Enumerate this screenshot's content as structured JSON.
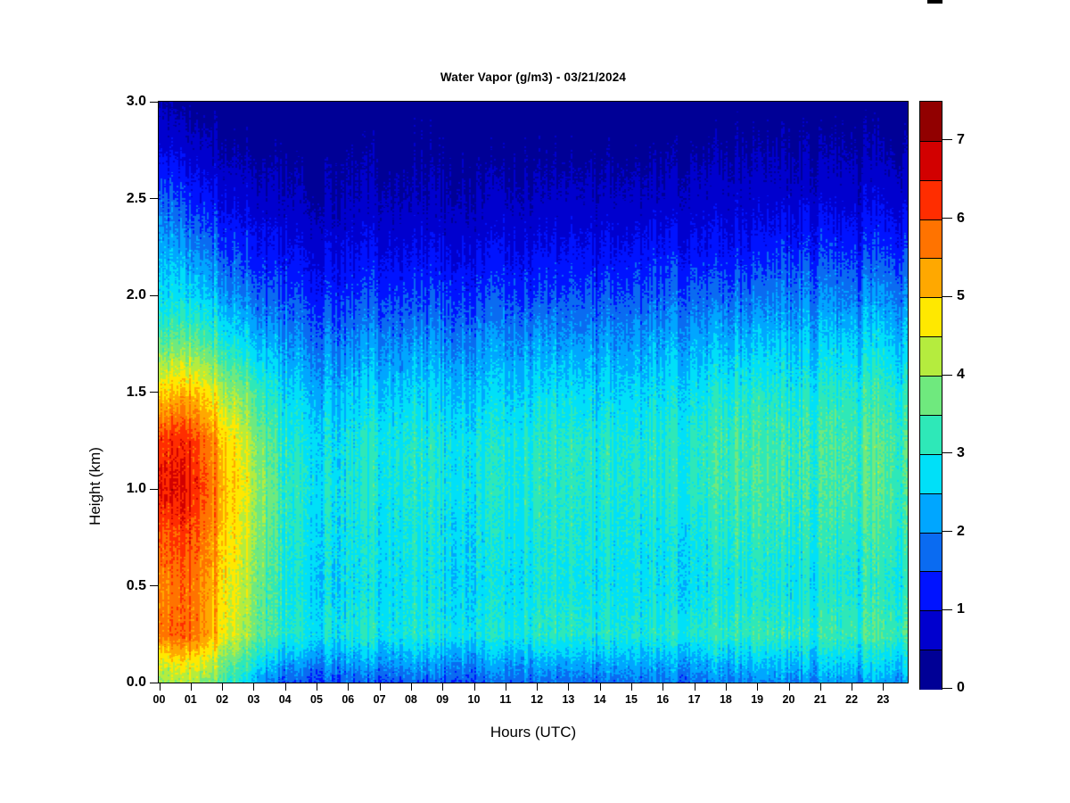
{
  "chart_data": {
    "type": "heatmap",
    "title": "Water Vapor (g/m3) - 03/21/2024",
    "xlabel": "Hours (UTC)",
    "ylabel": "Height (km)",
    "x_ticks": [
      "00",
      "01",
      "02",
      "03",
      "04",
      "05",
      "06",
      "07",
      "08",
      "09",
      "10",
      "11",
      "12",
      "13",
      "14",
      "15",
      "16",
      "17",
      "18",
      "19",
      "20",
      "21",
      "22",
      "23"
    ],
    "y_ticks": [
      "0.0",
      "0.5",
      "1.0",
      "1.5",
      "2.0",
      "2.5",
      "3.0"
    ],
    "x_range_hours": [
      0,
      24
    ],
    "y_range_km": [
      0.0,
      3.0
    ],
    "grid_lines": false,
    "colorbar": {
      "min": 0,
      "max": 7.5,
      "bin_size": 0.5,
      "tick_labels": [
        "0",
        "1",
        "2",
        "3",
        "4",
        "5",
        "6",
        "7"
      ],
      "colors": [
        "#000096",
        "#0000CE",
        "#0013FF",
        "#0A6BF1",
        "#00A6FF",
        "#00E0F8",
        "#2EE8B8",
        "#6FE97E",
        "#B5EC3E",
        "#FFE800",
        "#FFA800",
        "#FF7300",
        "#FF2D00",
        "#D20000",
        "#910000"
      ]
    },
    "grid": {
      "hours": [
        0,
        1,
        2,
        3,
        4,
        5,
        6,
        7,
        8,
        9,
        10,
        11,
        12,
        13,
        14,
        15,
        16,
        17,
        18,
        19,
        20,
        21,
        22,
        23,
        24
      ],
      "heights_km": [
        0,
        0.1,
        0.25,
        0.5,
        0.75,
        1,
        1.25,
        1.5,
        1.75,
        2,
        2.25,
        2.5,
        2.75,
        3
      ],
      "values_gm3_by_height_row": [
        [
          4.0,
          4.2,
          3.6,
          2.6,
          1.5,
          1.6,
          1.6,
          1.5,
          1.6,
          1.6,
          1.6,
          1.7,
          1.7,
          1.7,
          1.7,
          1.8,
          1.8,
          1.8,
          1.9,
          1.9,
          1.9,
          2.0,
          2.0,
          2.1,
          2.2
        ],
        [
          4.6,
          4.8,
          4.0,
          3.2,
          2.2,
          2.2,
          2.1,
          2.1,
          2.2,
          2.1,
          2.1,
          2.2,
          2.2,
          2.2,
          2.2,
          2.3,
          2.2,
          2.3,
          2.4,
          2.4,
          2.4,
          2.5,
          2.5,
          2.6,
          2.6
        ],
        [
          5.8,
          6.0,
          4.9,
          4.0,
          3.1,
          3.0,
          2.9,
          2.9,
          3.0,
          2.9,
          2.9,
          3.0,
          3.0,
          3.1,
          3.0,
          3.0,
          3.0,
          3.1,
          3.2,
          3.2,
          3.1,
          3.2,
          3.2,
          3.3,
          3.3
        ],
        [
          5.6,
          5.9,
          5.0,
          4.1,
          3.0,
          2.8,
          2.7,
          2.7,
          2.8,
          2.7,
          2.7,
          2.8,
          2.8,
          2.9,
          2.8,
          2.8,
          2.7,
          2.8,
          2.9,
          2.9,
          2.8,
          2.9,
          2.9,
          3.0,
          3.0
        ],
        [
          6.0,
          6.2,
          5.2,
          4.3,
          3.1,
          2.9,
          2.8,
          2.8,
          2.9,
          2.8,
          2.8,
          2.9,
          2.9,
          3.0,
          2.9,
          2.9,
          2.8,
          2.9,
          3.1,
          3.1,
          3.0,
          3.1,
          3.1,
          3.2,
          3.2
        ],
        [
          6.6,
          6.6,
          5.4,
          4.4,
          3.2,
          3.0,
          2.9,
          2.9,
          3.0,
          2.9,
          2.9,
          3.0,
          3.0,
          3.1,
          3.0,
          3.0,
          3.0,
          3.1,
          3.3,
          3.3,
          3.2,
          3.3,
          3.3,
          3.4,
          3.3
        ],
        [
          6.3,
          6.4,
          5.2,
          4.2,
          3.1,
          2.9,
          2.8,
          2.9,
          3.0,
          2.9,
          2.9,
          3.0,
          3.0,
          3.1,
          3.0,
          3.0,
          3.0,
          3.1,
          3.3,
          3.3,
          3.2,
          3.3,
          3.3,
          3.4,
          3.3
        ],
        [
          5.0,
          5.2,
          4.4,
          3.6,
          2.7,
          2.5,
          2.4,
          2.5,
          2.6,
          2.5,
          2.5,
          2.6,
          2.6,
          2.7,
          2.6,
          2.6,
          2.7,
          2.8,
          3.0,
          3.0,
          2.9,
          3.0,
          3.0,
          3.1,
          3.0
        ],
        [
          3.6,
          3.8,
          3.2,
          2.7,
          2.1,
          2.0,
          1.9,
          2.0,
          2.0,
          2.0,
          2.0,
          2.1,
          2.1,
          2.1,
          2.1,
          2.1,
          2.2,
          2.3,
          2.4,
          2.4,
          2.4,
          2.5,
          2.5,
          2.6,
          2.5
        ],
        [
          2.8,
          2.8,
          2.3,
          1.9,
          1.5,
          1.4,
          1.3,
          1.4,
          1.4,
          1.4,
          1.4,
          1.5,
          1.4,
          1.5,
          1.5,
          1.5,
          1.6,
          1.7,
          1.7,
          1.7,
          1.8,
          1.9,
          1.8,
          1.9,
          1.9
        ],
        [
          2.4,
          2.1,
          1.6,
          1.3,
          1.0,
          0.9,
          0.9,
          0.9,
          0.9,
          0.9,
          0.9,
          1.0,
          0.9,
          1.0,
          1.0,
          1.0,
          1.1,
          1.1,
          1.1,
          1.1,
          1.2,
          1.3,
          1.2,
          1.3,
          1.3
        ],
        [
          1.8,
          1.4,
          1.0,
          0.8,
          0.6,
          0.5,
          0.5,
          0.5,
          0.5,
          0.5,
          0.5,
          0.6,
          0.5,
          0.6,
          0.6,
          0.6,
          0.6,
          0.7,
          0.7,
          0.7,
          0.7,
          0.8,
          0.7,
          0.8,
          0.8
        ],
        [
          1.0,
          0.8,
          0.5,
          0.4,
          0.3,
          0.3,
          0.3,
          0.3,
          0.3,
          0.3,
          0.3,
          0.3,
          0.3,
          0.3,
          0.3,
          0.3,
          0.3,
          0.4,
          0.4,
          0.4,
          0.4,
          0.4,
          0.4,
          0.4,
          0.4
        ],
        [
          0.5,
          0.3,
          0.2,
          0.2,
          0.2,
          0.2,
          0.2,
          0.2,
          0.2,
          0.2,
          0.2,
          0.2,
          0.2,
          0.2,
          0.2,
          0.2,
          0.2,
          0.2,
          0.2,
          0.2,
          0.2,
          0.2,
          0.2,
          0.2,
          0.2
        ]
      ]
    },
    "noise": {
      "seed": 20240321,
      "column_streak_amp": 0.45,
      "patch_amp": 0.3,
      "pixel_amp": 0.3
    }
  }
}
